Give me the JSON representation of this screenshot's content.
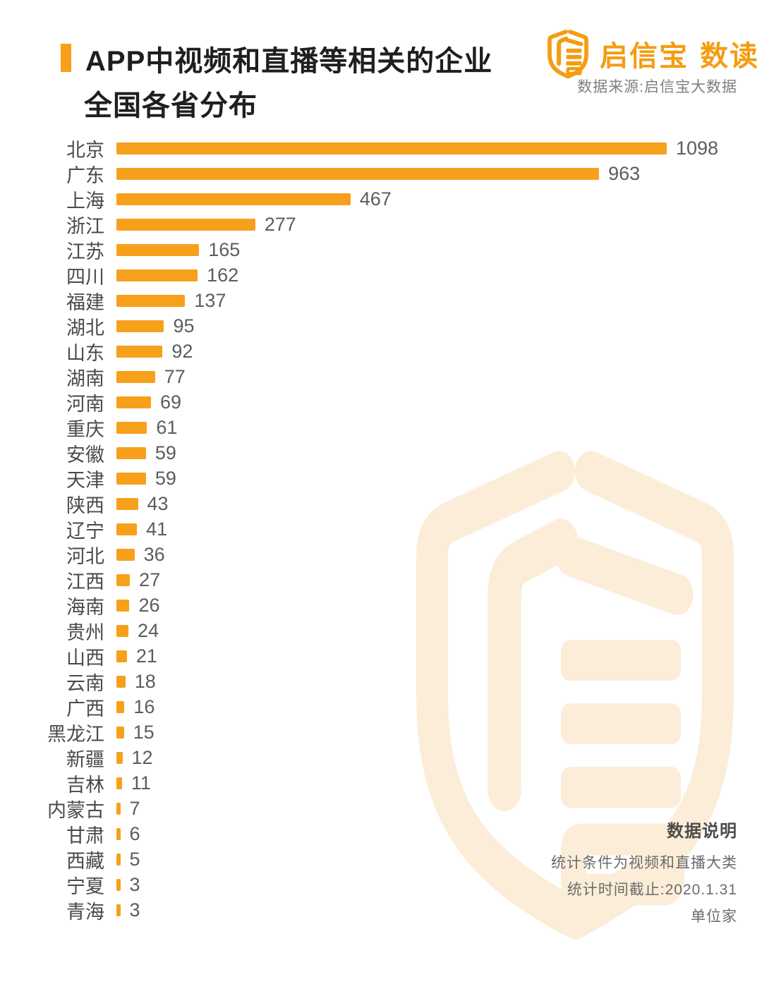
{
  "title": {
    "line1": "APP中视频和直播等相关的企业",
    "line2": "全国各省分布"
  },
  "brand": {
    "name": "启信宝",
    "suffix": "数读",
    "source": "数据来源:启信宝大数据",
    "logo_icon": "qixinbao-shield-icon"
  },
  "notes": {
    "heading": "数据说明",
    "line1": "统计条件为视频和直播大类",
    "line2": "统计时间截止:2020.1.31",
    "line3": "单位家"
  },
  "colors": {
    "bar": "#F6A01B",
    "brand": "#F49D12",
    "title_text": "#1F1F1F",
    "label_text": "#4A4A4A",
    "value_text": "#5C5C5C",
    "source_text": "#808080",
    "notes_heading": "#4D4D4D",
    "notes_text": "#6B6B6B",
    "watermark": "#FBEDD8"
  },
  "chart_data": {
    "type": "bar",
    "orientation": "horizontal",
    "title": "APP中视频和直播等相关的企业全国各省分布",
    "unit": "家",
    "xlim": [
      0,
      1098
    ],
    "grid": false,
    "legend": "none",
    "bar_color": "#F6A01B",
    "categories": [
      "北京",
      "广东",
      "上海",
      "浙江",
      "江苏",
      "四川",
      "福建",
      "湖北",
      "山东",
      "湖南",
      "河南",
      "重庆",
      "安徽",
      "天津",
      "陕西",
      "辽宁",
      "河北",
      "江西",
      "海南",
      "贵州",
      "山西",
      "云南",
      "广西",
      "黑龙江",
      "新疆",
      "吉林",
      "内蒙古",
      "甘肃",
      "西藏",
      "宁夏",
      "青海"
    ],
    "values": [
      1098,
      963,
      467,
      277,
      165,
      162,
      137,
      95,
      92,
      77,
      69,
      61,
      59,
      59,
      43,
      41,
      36,
      27,
      26,
      24,
      21,
      18,
      16,
      15,
      12,
      11,
      7,
      6,
      5,
      3,
      3
    ]
  }
}
